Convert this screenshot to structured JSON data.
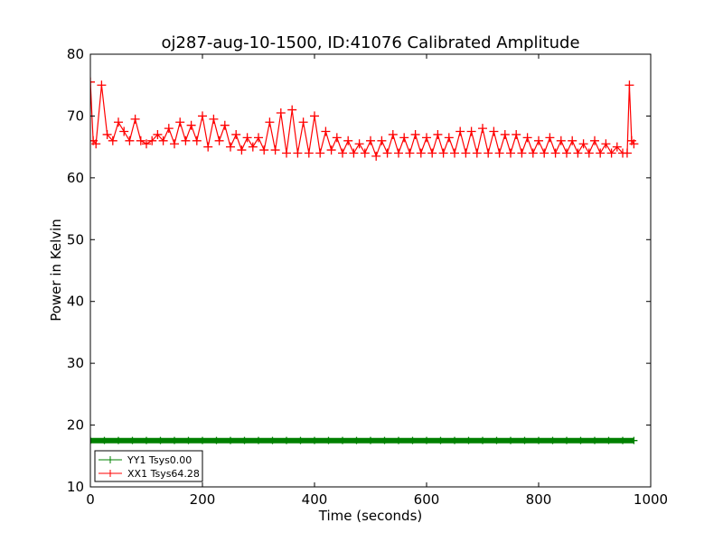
{
  "chart_data": {
    "type": "line",
    "title": "oj287-aug-10-1500, ID:41076 Calibrated Amplitude",
    "xlabel": "Time (seconds)",
    "ylabel": "Power in Kelvin",
    "xlim": [
      0,
      1000
    ],
    "ylim": [
      10,
      80
    ],
    "x_ticks": [
      "0",
      "200",
      "400",
      "600",
      "800",
      "1000"
    ],
    "y_ticks": [
      "10",
      "20",
      "30",
      "40",
      "50",
      "60",
      "70",
      "80"
    ],
    "grid": false,
    "legend_position": "lower-left",
    "series": [
      {
        "name": "YY1 Tsys0.00",
        "color": "#008000",
        "marker": "plus",
        "x": [
          0,
          25,
          50,
          75,
          100,
          125,
          150,
          175,
          200,
          225,
          250,
          275,
          300,
          325,
          350,
          375,
          400,
          425,
          450,
          475,
          500,
          525,
          550,
          575,
          600,
          625,
          650,
          675,
          700,
          725,
          750,
          775,
          800,
          825,
          850,
          875,
          900,
          925,
          950,
          970
        ],
        "y": [
          17.5,
          17.5,
          17.5,
          17.5,
          17.5,
          17.5,
          17.5,
          17.5,
          17.5,
          17.5,
          17.5,
          17.5,
          17.5,
          17.5,
          17.5,
          17.5,
          17.5,
          17.5,
          17.5,
          17.5,
          17.5,
          17.5,
          17.5,
          17.5,
          17.5,
          17.5,
          17.5,
          17.5,
          17.5,
          17.5,
          17.5,
          17.5,
          17.5,
          17.5,
          17.5,
          17.5,
          17.5,
          17.5,
          17.5,
          17.5
        ]
      },
      {
        "name": "XX1 Tsys64.28",
        "color": "#ff0000",
        "marker": "plus",
        "x": [
          0,
          5,
          10,
          20,
          30,
          40,
          50,
          60,
          70,
          80,
          90,
          100,
          110,
          120,
          130,
          140,
          150,
          160,
          170,
          180,
          190,
          200,
          210,
          220,
          230,
          240,
          250,
          260,
          270,
          280,
          290,
          300,
          310,
          320,
          330,
          340,
          350,
          360,
          370,
          380,
          390,
          400,
          410,
          420,
          430,
          440,
          450,
          460,
          470,
          480,
          490,
          500,
          510,
          520,
          530,
          540,
          550,
          560,
          570,
          580,
          590,
          600,
          610,
          620,
          630,
          640,
          650,
          660,
          670,
          680,
          690,
          700,
          710,
          720,
          730,
          740,
          750,
          760,
          770,
          780,
          790,
          800,
          810,
          820,
          830,
          840,
          850,
          860,
          870,
          880,
          890,
          900,
          910,
          920,
          930,
          940,
          950,
          958,
          962,
          966,
          970
        ],
        "y": [
          75.5,
          66,
          65.5,
          75,
          67,
          66,
          69,
          67.5,
          66,
          69.5,
          66,
          65.5,
          66,
          67,
          66,
          68,
          65.5,
          69,
          66,
          68.5,
          66,
          70,
          65,
          69.5,
          66,
          68.5,
          65,
          67,
          64.5,
          66.5,
          65,
          66.5,
          64.5,
          69,
          64.5,
          70.5,
          64,
          71,
          64,
          69,
          64,
          70,
          64,
          67.5,
          64.5,
          66.5,
          64,
          66,
          64,
          65.5,
          64,
          66,
          63.5,
          66,
          64,
          67,
          64,
          66.5,
          64,
          67,
          64,
          66.5,
          64,
          67,
          64,
          66.5,
          64,
          67.5,
          64,
          67.5,
          64,
          68,
          64,
          67.5,
          64,
          67,
          64,
          67,
          64,
          66.5,
          64,
          66,
          64,
          66.5,
          64,
          66,
          64,
          66,
          64,
          65.5,
          64,
          66,
          64,
          65.5,
          64,
          65,
          64,
          64,
          75,
          66,
          65.5
        ]
      }
    ]
  }
}
